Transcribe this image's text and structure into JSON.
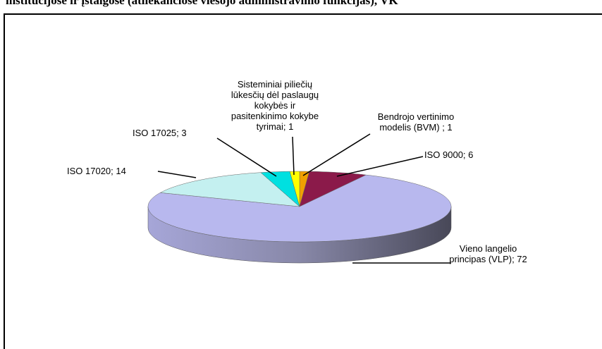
{
  "chart_data": {
    "type": "pie3d",
    "title": "institucijose ir įstaigose (atliekančiose viešojo administravimo funkcijas), VK",
    "categories": [
      "Bendrojo vertinimo modelis (BVM)",
      "ISO 9000",
      "Vieno langelio principas (VLP)",
      "ISO 17020",
      "ISO 17025",
      "Sisteminiai piliečių lūkesčių dėl paslaugų kokybės ir pasitenkinimo kokybe tyrimai"
    ],
    "values": [
      1,
      6,
      72,
      14,
      3,
      1
    ],
    "value_labels": [
      "Bendrojo vertinimo modelis (BVM) ; 1",
      "ISO 9000; 6",
      "Vieno langelio principas (VLP); 72",
      "ISO 17020; 14",
      "ISO 17025; 3",
      "Sisteminiai piliečių lūkesčių dėl paslaugų kokybės ir pasitenkinimo kokybe tyrimai; 1"
    ],
    "colors": [
      "#f0a000",
      "#8b1a4a",
      "#b8b8ee",
      "#c4f0f0",
      "#00e0e0",
      "#ffff00"
    ]
  }
}
